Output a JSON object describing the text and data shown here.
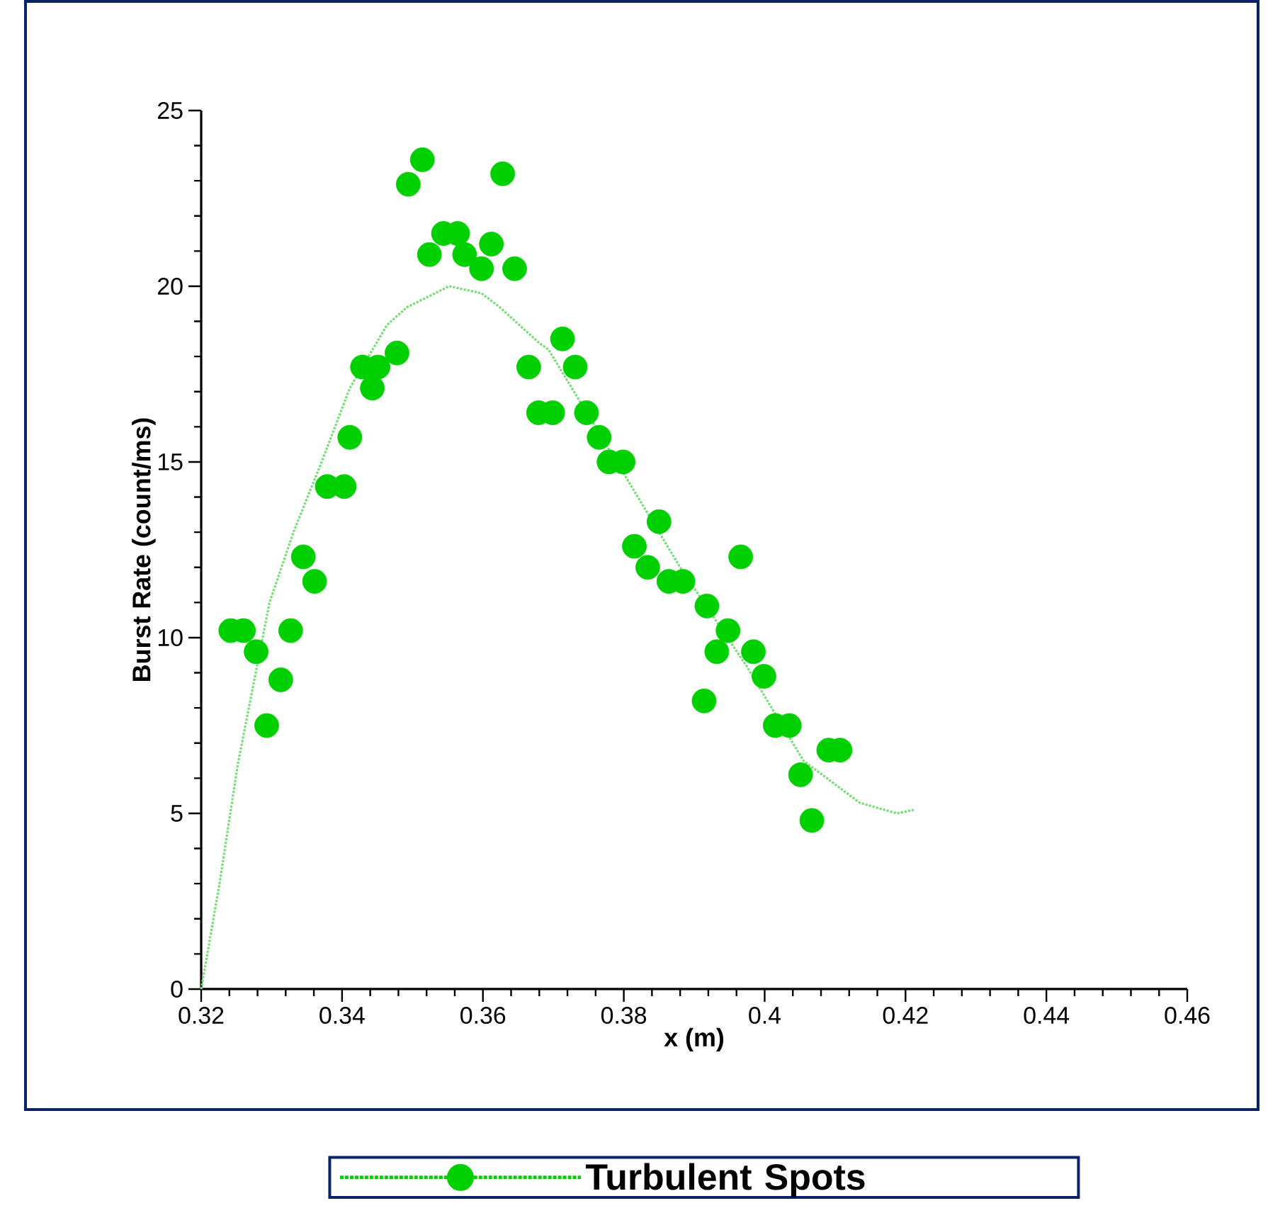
{
  "chart_data": {
    "type": "scatter",
    "xlabel": "x (m)",
    "ylabel": "Burst Rate (count/ms)",
    "xlim": [
      0.32,
      0.46
    ],
    "xticks": [
      0.32,
      0.34,
      0.36,
      0.38,
      0.4,
      0.42,
      0.44,
      0.46
    ],
    "ylim": [
      0,
      25
    ],
    "yticks": [
      0,
      5,
      10,
      15,
      20,
      25
    ],
    "grid": false,
    "legend": "bottom",
    "series": [
      {
        "name": "Turbulent Spots",
        "type": "scatter",
        "marker": "circle",
        "color": "#00d000",
        "x": [
          0.3242,
          0.326,
          0.3278,
          0.3293,
          0.3313,
          0.3327,
          0.3345,
          0.3361,
          0.3379,
          0.3403,
          0.3411,
          0.3429,
          0.3443,
          0.3451,
          0.3478,
          0.3494,
          0.3514,
          0.3524,
          0.3544,
          0.3564,
          0.3574,
          0.3598,
          0.3612,
          0.3628,
          0.3645,
          0.3665,
          0.3679,
          0.3699,
          0.3713,
          0.3731,
          0.3747,
          0.3765,
          0.3779,
          0.3799,
          0.3815,
          0.3834,
          0.385,
          0.3864,
          0.3884,
          0.3914,
          0.3918,
          0.3932,
          0.3948,
          0.3966,
          0.3984,
          0.3999,
          0.4015,
          0.4035,
          0.4051,
          0.4067,
          0.4091,
          0.4107
        ],
        "values": [
          10.2,
          10.2,
          9.6,
          7.5,
          8.8,
          10.2,
          12.3,
          11.6,
          14.3,
          14.3,
          15.7,
          17.7,
          17.1,
          17.7,
          18.1,
          22.9,
          23.6,
          20.9,
          21.5,
          21.5,
          20.9,
          20.5,
          21.2,
          23.2,
          20.5,
          17.7,
          16.4,
          16.4,
          18.5,
          17.7,
          16.4,
          15.7,
          15.0,
          15.0,
          12.6,
          12.0,
          13.3,
          11.6,
          11.6,
          8.2,
          10.9,
          9.6,
          10.2,
          12.3,
          9.6,
          8.9,
          7.5,
          7.5,
          6.1,
          4.8,
          6.8,
          6.8
        ]
      },
      {
        "type": "line",
        "line_style": "dotted",
        "marker": "none",
        "color": "#77dd77",
        "x": [
          0.32,
          0.3226,
          0.3252,
          0.3297,
          0.3331,
          0.3371,
          0.3411,
          0.3464,
          0.3492,
          0.3552,
          0.3598,
          0.3624,
          0.3679,
          0.3693,
          0.3799,
          0.388,
          0.3974,
          0.4055,
          0.4135,
          0.4188,
          0.4212
        ],
        "values": [
          0,
          3.0,
          6.4,
          11.0,
          13.0,
          15.0,
          17.1,
          18.9,
          19.4,
          20.0,
          19.8,
          19.4,
          18.4,
          18.2,
          14.7,
          12.0,
          9.2,
          6.5,
          5.3,
          5.0,
          5.1
        ]
      }
    ]
  }
}
